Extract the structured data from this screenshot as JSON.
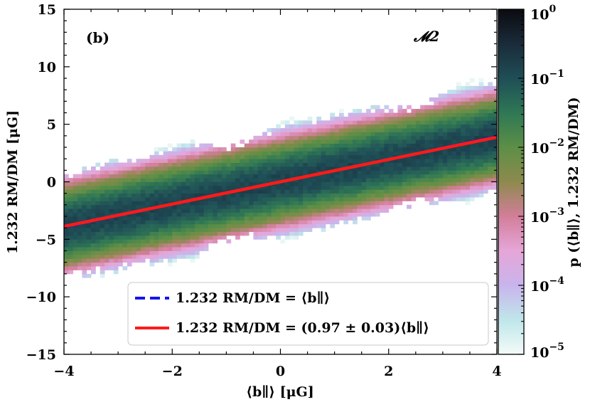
{
  "chart_data": {
    "type": "heatmap",
    "panel_label": "(b)",
    "model_label": "𝓜2",
    "xlabel": "⟨b∥⟩ [μG]",
    "ylabel": "1.232 RM/DM [μG]",
    "xlim": [
      -4,
      4
    ],
    "ylim": [
      -15,
      15
    ],
    "x_ticks": [
      -4,
      -2,
      0,
      2,
      4
    ],
    "x_tick_labels": [
      "−4",
      "−2",
      "0",
      "2",
      "4"
    ],
    "y_ticks": [
      -15,
      -10,
      -5,
      0,
      5,
      10,
      15
    ],
    "y_tick_labels": [
      "−15",
      "−10",
      "−5",
      "0",
      "5",
      "10",
      "15"
    ],
    "colorbar": {
      "label": "p (⟨b∥⟩, 1.232 RM/DM)",
      "scale": "log",
      "range": [
        1e-05,
        1
      ],
      "ticks": [
        {
          "exp": -5,
          "base": "10",
          "power": "−5"
        },
        {
          "exp": -4,
          "base": "10",
          "power": "−4"
        },
        {
          "exp": -3,
          "base": "10",
          "power": "−3"
        },
        {
          "exp": -2,
          "base": "10",
          "power": "−2"
        },
        {
          "exp": -1,
          "base": "10",
          "power": "−1"
        },
        {
          "exp": 0,
          "base": "10",
          "power": "0"
        }
      ],
      "colors": [
        "#f3fbf8",
        "#bfe6ea",
        "#c9b4ec",
        "#e6a6d8",
        "#d27e99",
        "#8d8a4e",
        "#5c8f46",
        "#2f7755",
        "#1f4e57",
        "#1a2b3a",
        "#0b0b10"
      ]
    },
    "distribution": {
      "slope": 0.97,
      "intercept": 0.0,
      "sigma_core": 2.0,
      "max_extent": 4.6,
      "bins_x": 96,
      "bins_y": 90
    },
    "series": [
      {
        "name": "1.232 RM/DM = ⟨b∥⟩",
        "style": "dashed",
        "color": "#1515ee",
        "slope": 1.0,
        "intercept": 0.0
      },
      {
        "name": "1.232 RM/DM = (0.97 ± 0.03)⟨b∥⟩",
        "style": "solid",
        "color": "#ff1a1a",
        "slope": 0.97,
        "intercept": 0.0
      }
    ],
    "legend_position": "lower-center"
  }
}
